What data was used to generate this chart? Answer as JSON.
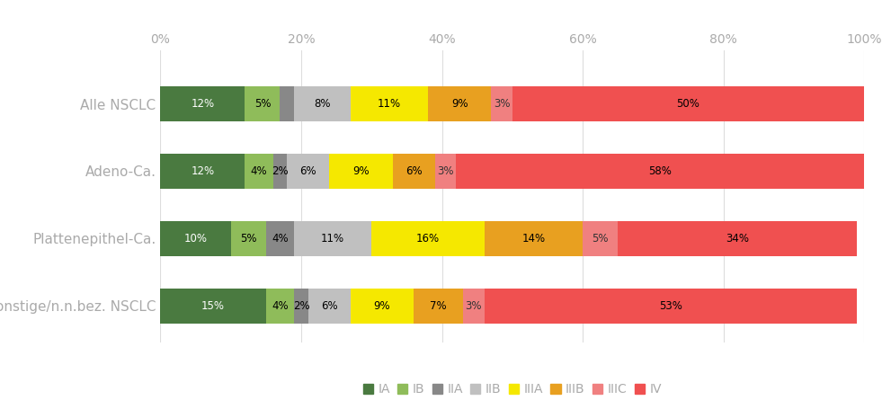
{
  "categories": [
    "Alle NSCLC",
    "Adeno-Ca.",
    "Plattenepithel-Ca.",
    "sonstige/n.n.bez. NSCLC"
  ],
  "stages": [
    "IA",
    "IB",
    "IIA",
    "IIB",
    "IIIA",
    "IIIB",
    "IIIC",
    "IV"
  ],
  "colors": [
    "#4a7a40",
    "#8fbc5a",
    "#888888",
    "#c0c0c0",
    "#f5e800",
    "#e8a020",
    "#f08080",
    "#f05050"
  ],
  "values": [
    [
      12,
      5,
      2,
      8,
      11,
      9,
      3,
      50
    ],
    [
      12,
      4,
      2,
      6,
      9,
      6,
      3,
      58
    ],
    [
      10,
      5,
      4,
      11,
      16,
      14,
      5,
      34
    ],
    [
      15,
      4,
      2,
      6,
      9,
      7,
      3,
      53
    ]
  ],
  "labels": [
    [
      "12%",
      "5%",
      "",
      "8%",
      "11%",
      "9%",
      "3%",
      "50%"
    ],
    [
      "12%",
      "4%",
      "2%",
      "6%",
      "9%",
      "6%",
      "3%",
      "58%"
    ],
    [
      "10%",
      "5%",
      "4%",
      "11%",
      "16%",
      "14%",
      "5%",
      "34%"
    ],
    [
      "15%",
      "4%",
      "2%",
      "6%",
      "9%",
      "7%",
      "3%",
      "53%"
    ]
  ],
  "show_label": [
    [
      true,
      true,
      false,
      true,
      true,
      true,
      true,
      true
    ],
    [
      true,
      true,
      true,
      true,
      true,
      true,
      true,
      true
    ],
    [
      true,
      true,
      true,
      true,
      true,
      true,
      true,
      true
    ],
    [
      true,
      true,
      true,
      true,
      true,
      true,
      true,
      true
    ]
  ],
  "xlim": [
    0,
    100
  ],
  "xticks": [
    0,
    20,
    40,
    60,
    80,
    100
  ],
  "xticklabels": [
    "0%",
    "20%",
    "40%",
    "60%",
    "80%",
    "100%"
  ],
  "label_fontsize": 8.5,
  "tick_color": "#aaaaaa",
  "bar_height": 0.52,
  "background_color": "#ffffff",
  "ytext_color": "#aaaaaa",
  "legend_label_color": "#aaaaaa"
}
